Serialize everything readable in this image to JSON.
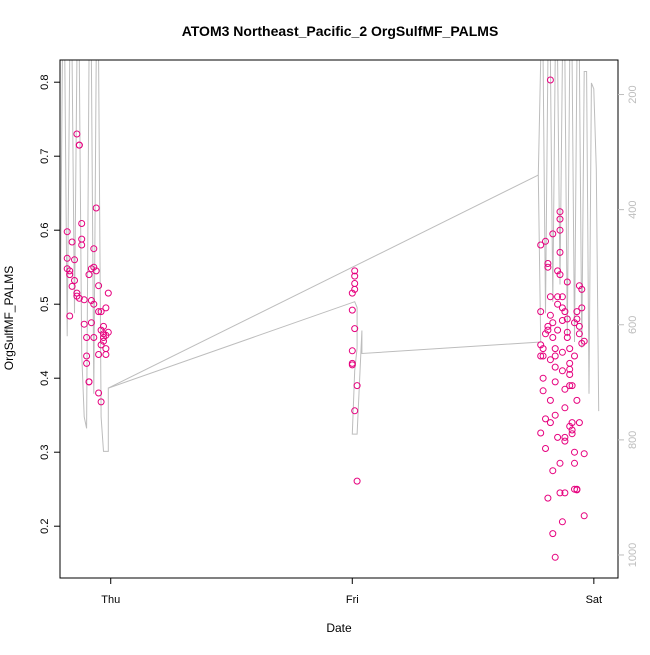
{
  "chart_data": {
    "type": "scatter",
    "title": "ATOM3 Northeast_Pacific_2 OrgSulfMF_PALMS",
    "xlabel": "Date",
    "ylabel": "OrgSulfMF_PALMS",
    "x_ticks": [
      {
        "label": "Thu",
        "value": 1.0
      },
      {
        "label": "Fri",
        "value": 2.0
      },
      {
        "label": "Sat",
        "value": 3.0
      }
    ],
    "xlim": [
      0.79,
      3.1
    ],
    "ylim": [
      0.13,
      0.83
    ],
    "y_ticks": [
      0.2,
      0.3,
      0.4,
      0.5,
      0.6,
      0.7,
      0.8
    ],
    "right_axis": {
      "ylim": [
        1040,
        140
      ],
      "ticks": [
        200,
        400,
        600,
        800,
        1000
      ],
      "color": "#bdbdbd"
    },
    "grid": false,
    "colors": {
      "points": "#e6007e",
      "line": "#bdbdbd"
    },
    "series": [
      {
        "values": [
          [
            0.82,
            0.598
          ],
          [
            0.82,
            0.562
          ],
          [
            0.83,
            0.545
          ],
          [
            0.83,
            0.54
          ],
          [
            0.82,
            0.548
          ],
          [
            0.83,
            0.484
          ],
          [
            0.84,
            0.584
          ],
          [
            0.84,
            0.524
          ],
          [
            0.85,
            0.56
          ],
          [
            0.85,
            0.532
          ],
          [
            0.86,
            0.515
          ],
          [
            0.86,
            0.511
          ],
          [
            0.86,
            0.73
          ],
          [
            0.87,
            0.715
          ],
          [
            0.87,
            0.715
          ],
          [
            0.87,
            0.508
          ],
          [
            0.88,
            0.58
          ],
          [
            0.88,
            0.588
          ],
          [
            0.88,
            0.609
          ],
          [
            0.89,
            0.473
          ],
          [
            0.89,
            0.506
          ],
          [
            0.9,
            0.455
          ],
          [
            0.9,
            0.43
          ],
          [
            0.9,
            0.42
          ],
          [
            0.91,
            0.395
          ],
          [
            0.91,
            0.395
          ],
          [
            0.91,
            0.54
          ],
          [
            0.92,
            0.548
          ],
          [
            0.92,
            0.505
          ],
          [
            0.92,
            0.475
          ],
          [
            0.93,
            0.455
          ],
          [
            0.93,
            0.5
          ],
          [
            0.93,
            0.55
          ],
          [
            0.93,
            0.575
          ],
          [
            0.94,
            0.63
          ],
          [
            0.94,
            0.545
          ],
          [
            0.95,
            0.525
          ],
          [
            0.95,
            0.49
          ],
          [
            0.95,
            0.432
          ],
          [
            0.95,
            0.38
          ],
          [
            0.96,
            0.368
          ],
          [
            0.96,
            0.465
          ],
          [
            0.97,
            0.46
          ],
          [
            0.97,
            0.455
          ],
          [
            0.97,
            0.45
          ],
          [
            0.98,
            0.495
          ],
          [
            0.98,
            0.44
          ],
          [
            0.98,
            0.432
          ],
          [
            0.99,
            0.462
          ],
          [
            0.99,
            0.515
          ],
          [
            0.97,
            0.47
          ],
          [
            0.96,
            0.49
          ],
          [
            0.98,
            0.458
          ],
          [
            0.96,
            0.445
          ],
          [
            2.0,
            0.515
          ],
          [
            2.0,
            0.492
          ],
          [
            2.0,
            0.437
          ],
          [
            2.0,
            0.42
          ],
          [
            2.0,
            0.418
          ],
          [
            2.01,
            0.528
          ],
          [
            2.01,
            0.538
          ],
          [
            2.01,
            0.545
          ],
          [
            2.01,
            0.52
          ],
          [
            2.01,
            0.467
          ],
          [
            2.01,
            0.356
          ],
          [
            2.02,
            0.39
          ],
          [
            2.02,
            0.261
          ],
          [
            2.78,
            0.49
          ],
          [
            2.78,
            0.58
          ],
          [
            2.78,
            0.43
          ],
          [
            2.78,
            0.445
          ],
          [
            2.78,
            0.326
          ],
          [
            2.79,
            0.43
          ],
          [
            2.79,
            0.44
          ],
          [
            2.79,
            0.4
          ],
          [
            2.79,
            0.383
          ],
          [
            2.8,
            0.345
          ],
          [
            2.8,
            0.305
          ],
          [
            2.8,
            0.46
          ],
          [
            2.8,
            0.585
          ],
          [
            2.81,
            0.465
          ],
          [
            2.81,
            0.47
          ],
          [
            2.81,
            0.555
          ],
          [
            2.81,
            0.55
          ],
          [
            2.82,
            0.51
          ],
          [
            2.82,
            0.485
          ],
          [
            2.82,
            0.425
          ],
          [
            2.82,
            0.37
          ],
          [
            2.82,
            0.34
          ],
          [
            2.83,
            0.595
          ],
          [
            2.83,
            0.475
          ],
          [
            2.83,
            0.455
          ],
          [
            2.84,
            0.44
          ],
          [
            2.84,
            0.43
          ],
          [
            2.84,
            0.415
          ],
          [
            2.84,
            0.395
          ],
          [
            2.84,
            0.35
          ],
          [
            2.85,
            0.545
          ],
          [
            2.85,
            0.51
          ],
          [
            2.85,
            0.5
          ],
          [
            2.85,
            0.465
          ],
          [
            2.86,
            0.625
          ],
          [
            2.86,
            0.615
          ],
          [
            2.86,
            0.6
          ],
          [
            2.86,
            0.57
          ],
          [
            2.86,
            0.54
          ],
          [
            2.87,
            0.51
          ],
          [
            2.87,
            0.495
          ],
          [
            2.87,
            0.478
          ],
          [
            2.87,
            0.435
          ],
          [
            2.87,
            0.41
          ],
          [
            2.88,
            0.385
          ],
          [
            2.88,
            0.36
          ],
          [
            2.88,
            0.32
          ],
          [
            2.88,
            0.315
          ],
          [
            2.89,
            0.48
          ],
          [
            2.89,
            0.462
          ],
          [
            2.89,
            0.455
          ],
          [
            2.9,
            0.412
          ],
          [
            2.9,
            0.405
          ],
          [
            2.9,
            0.39
          ],
          [
            2.9,
            0.335
          ],
          [
            2.91,
            0.33
          ],
          [
            2.91,
            0.325
          ],
          [
            2.91,
            0.34
          ],
          [
            2.92,
            0.3
          ],
          [
            2.92,
            0.285
          ],
          [
            2.92,
            0.25
          ],
          [
            2.93,
            0.25
          ],
          [
            2.93,
            0.249
          ],
          [
            2.93,
            0.48
          ],
          [
            2.93,
            0.49
          ],
          [
            2.94,
            0.525
          ],
          [
            2.94,
            0.47
          ],
          [
            2.94,
            0.46
          ],
          [
            2.95,
            0.447
          ],
          [
            2.95,
            0.495
          ],
          [
            2.95,
            0.52
          ],
          [
            2.96,
            0.298
          ],
          [
            2.96,
            0.214
          ],
          [
            2.82,
            0.803
          ],
          [
            2.83,
            0.19
          ],
          [
            2.84,
            0.158
          ],
          [
            2.87,
            0.206
          ],
          [
            2.88,
            0.245
          ],
          [
            2.81,
            0.238
          ],
          [
            2.83,
            0.275
          ],
          [
            2.86,
            0.245
          ],
          [
            2.89,
            0.53
          ],
          [
            2.9,
            0.42
          ],
          [
            2.91,
            0.39
          ],
          [
            2.92,
            0.43
          ],
          [
            2.85,
            0.32
          ],
          [
            2.86,
            0.285
          ],
          [
            2.88,
            0.49
          ],
          [
            2.9,
            0.44
          ],
          [
            2.92,
            0.475
          ],
          [
            2.94,
            0.34
          ],
          [
            2.93,
            0.37
          ],
          [
            2.96,
            0.45
          ]
        ]
      }
    ],
    "pressure_line": [
      [
        0.79,
        640
      ],
      [
        0.8,
        140
      ],
      [
        0.81,
        140
      ],
      [
        0.82,
        620
      ],
      [
        0.83,
        140
      ],
      [
        0.84,
        140
      ],
      [
        0.85,
        580
      ],
      [
        0.86,
        140
      ],
      [
        0.87,
        140
      ],
      [
        0.88,
        650
      ],
      [
        0.89,
        760
      ],
      [
        0.9,
        780
      ],
      [
        0.91,
        140
      ],
      [
        0.92,
        140
      ],
      [
        0.93,
        720
      ],
      [
        0.94,
        140
      ],
      [
        0.95,
        140
      ],
      [
        0.96,
        760
      ],
      [
        0.97,
        820
      ],
      [
        0.99,
        820
      ],
      [
        0.99,
        710
      ],
      [
        2.01,
        560
      ],
      [
        2.02,
        570
      ],
      [
        2.02,
        640
      ],
      [
        2.01,
        680
      ],
      [
        2.0,
        790
      ],
      [
        2.02,
        790
      ],
      [
        2.04,
        610
      ],
      [
        2.04,
        650
      ],
      [
        2.78,
        630
      ],
      [
        2.77,
        340
      ],
      [
        2.78,
        140
      ],
      [
        2.79,
        140
      ],
      [
        2.8,
        580
      ],
      [
        2.81,
        140
      ],
      [
        2.82,
        140
      ],
      [
        2.83,
        560
      ],
      [
        2.84,
        140
      ],
      [
        2.85,
        140
      ],
      [
        2.86,
        530
      ],
      [
        2.87,
        140
      ],
      [
        2.88,
        140
      ],
      [
        2.89,
        620
      ],
      [
        2.9,
        140
      ],
      [
        2.91,
        140
      ],
      [
        2.92,
        630
      ],
      [
        2.93,
        140
      ],
      [
        2.94,
        140
      ],
      [
        2.95,
        640
      ],
      [
        2.96,
        160
      ],
      [
        2.97,
        160
      ],
      [
        2.98,
        720
      ],
      [
        2.99,
        180
      ],
      [
        3.0,
        190
      ],
      [
        3.01,
        330
      ],
      [
        3.02,
        750
      ]
    ],
    "pressure_transit_line": [
      [
        0.99,
        710
      ],
      [
        2.77,
        340
      ]
    ]
  }
}
